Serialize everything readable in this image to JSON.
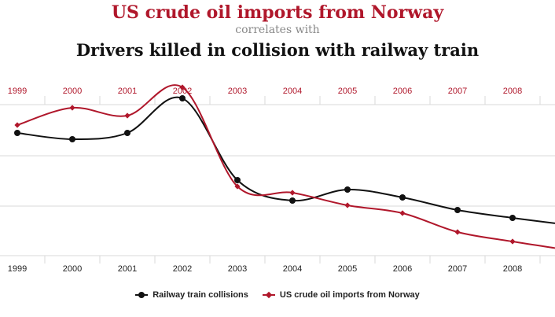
{
  "header": {
    "title_top": "US crude oil imports from Norway",
    "title_mid": "correlates with",
    "title_bottom": "Drivers killed in collision with railway train"
  },
  "legend": {
    "series1": "Railway train collisions",
    "series2": "US crude oil imports from Norway"
  },
  "colors": {
    "black_series": "#111111",
    "red_series": "#b0172b",
    "grid": "#d9d9d9"
  },
  "chart_data": {
    "type": "line",
    "categories": [
      "1999",
      "2000",
      "2001",
      "2002",
      "2003",
      "2004",
      "2005",
      "2006",
      "2007",
      "2008"
    ],
    "series": [
      {
        "name": "Railway train collisions",
        "values": [
          0.78,
          0.74,
          0.78,
          1.0,
          0.48,
          0.35,
          0.42,
          0.37,
          0.29,
          0.24
        ],
        "color": "#111111",
        "marker": "circle"
      },
      {
        "name": "US crude oil imports from Norway",
        "values": [
          0.83,
          0.94,
          0.89,
          1.07,
          0.44,
          0.4,
          0.32,
          0.27,
          0.15,
          0.09
        ],
        "color": "#b0172b",
        "marker": "diamond"
      }
    ],
    "y_axis_labels": "none",
    "grid": true,
    "legend_position": "bottom-center"
  }
}
